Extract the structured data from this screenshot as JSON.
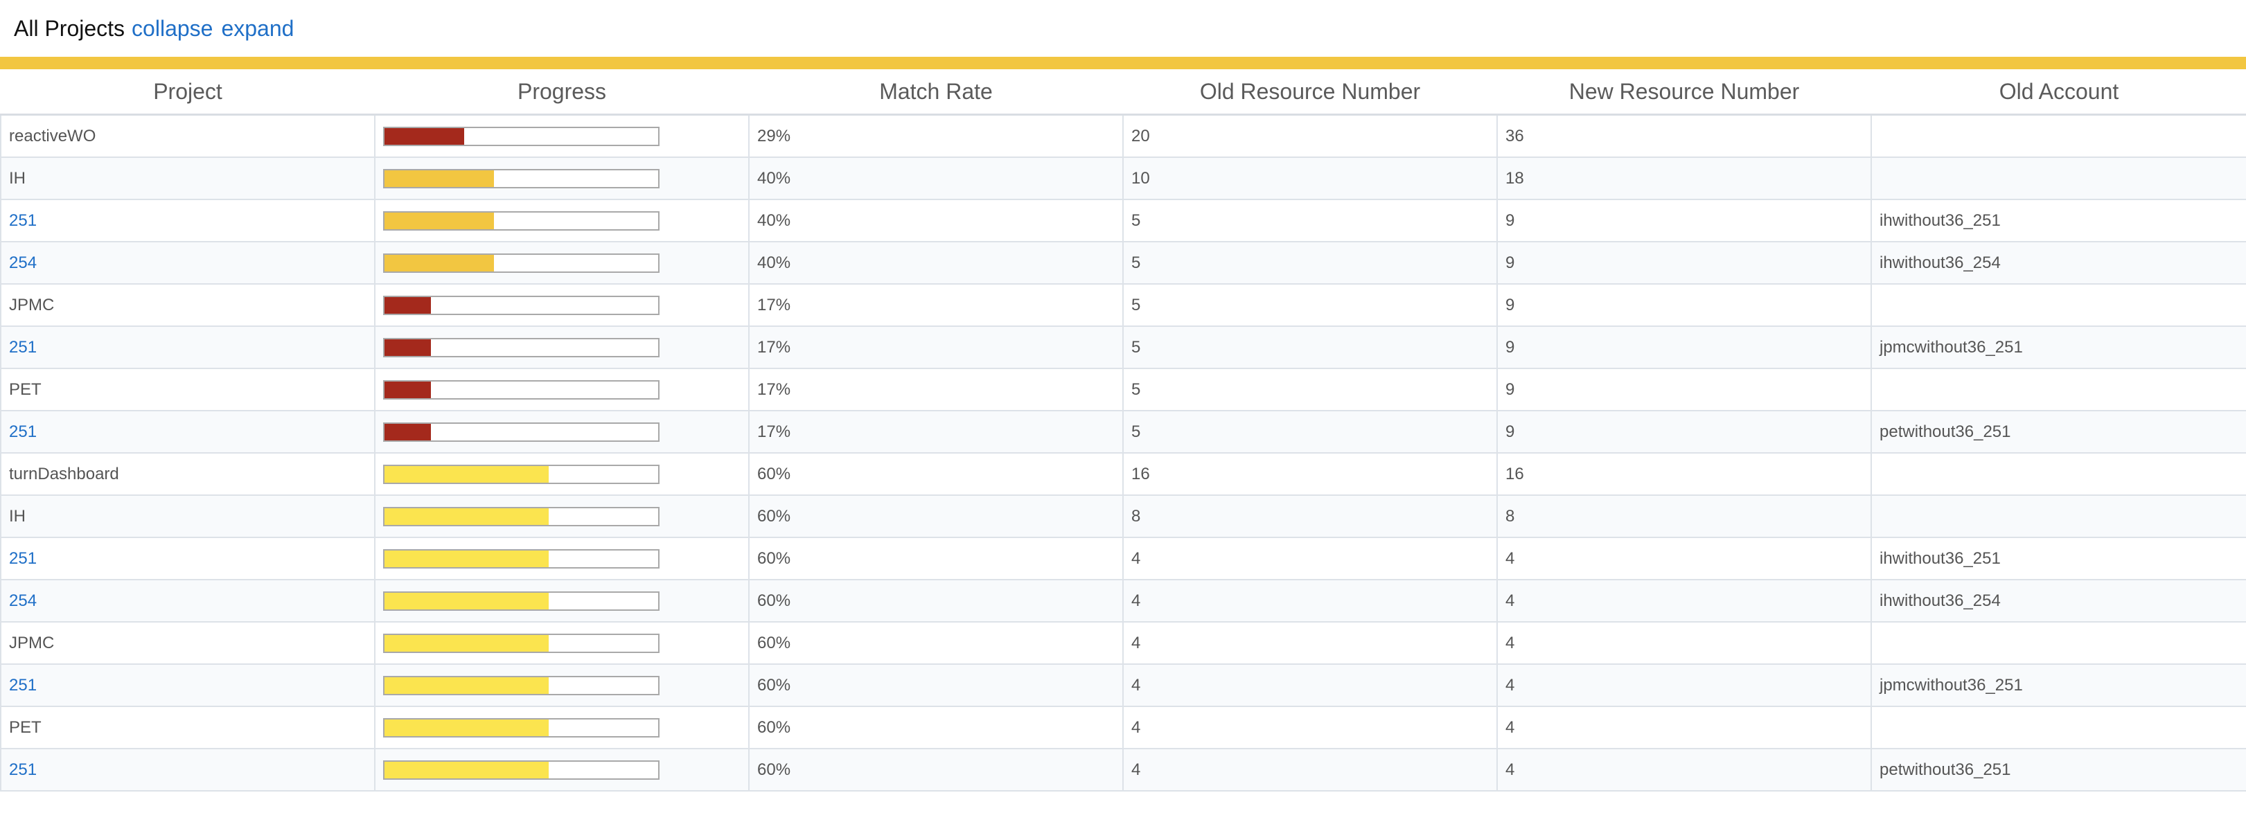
{
  "header": {
    "title": "All Projects",
    "collapse_label": "collapse",
    "expand_label": "expand"
  },
  "colors": {
    "accent_bar": "#f2c641",
    "link": "#1f6fc7",
    "progress_low": "#a4291c",
    "progress_mid": "#f2c641",
    "progress_high": "#fbe44f"
  },
  "table": {
    "columns": [
      "Project",
      "Progress",
      "Match Rate",
      "Old Resource Number",
      "New Resource Number",
      "Old Account"
    ],
    "rows": [
      {
        "project": "reactiveWO",
        "link": false,
        "progress": 0.29,
        "color": "#a4291c",
        "match_rate": "29%",
        "old_resource": "20",
        "new_resource": "36",
        "old_account": ""
      },
      {
        "project": "IH",
        "link": false,
        "progress": 0.4,
        "color": "#f2c641",
        "match_rate": "40%",
        "old_resource": "10",
        "new_resource": "18",
        "old_account": ""
      },
      {
        "project": "251",
        "link": true,
        "progress": 0.4,
        "color": "#f2c641",
        "match_rate": "40%",
        "old_resource": "5",
        "new_resource": "9",
        "old_account": "ihwithout36_251"
      },
      {
        "project": "254",
        "link": true,
        "progress": 0.4,
        "color": "#f2c641",
        "match_rate": "40%",
        "old_resource": "5",
        "new_resource": "9",
        "old_account": "ihwithout36_254"
      },
      {
        "project": "JPMC",
        "link": false,
        "progress": 0.17,
        "color": "#a4291c",
        "match_rate": "17%",
        "old_resource": "5",
        "new_resource": "9",
        "old_account": ""
      },
      {
        "project": "251",
        "link": true,
        "progress": 0.17,
        "color": "#a4291c",
        "match_rate": "17%",
        "old_resource": "5",
        "new_resource": "9",
        "old_account": "jpmcwithout36_251"
      },
      {
        "project": "PET",
        "link": false,
        "progress": 0.17,
        "color": "#a4291c",
        "match_rate": "17%",
        "old_resource": "5",
        "new_resource": "9",
        "old_account": ""
      },
      {
        "project": "251",
        "link": true,
        "progress": 0.17,
        "color": "#a4291c",
        "match_rate": "17%",
        "old_resource": "5",
        "new_resource": "9",
        "old_account": "petwithout36_251"
      },
      {
        "project": "turnDashboard",
        "link": false,
        "progress": 0.6,
        "color": "#fbe44f",
        "match_rate": "60%",
        "old_resource": "16",
        "new_resource": "16",
        "old_account": ""
      },
      {
        "project": "IH",
        "link": false,
        "progress": 0.6,
        "color": "#fbe44f",
        "match_rate": "60%",
        "old_resource": "8",
        "new_resource": "8",
        "old_account": ""
      },
      {
        "project": "251",
        "link": true,
        "progress": 0.6,
        "color": "#fbe44f",
        "match_rate": "60%",
        "old_resource": "4",
        "new_resource": "4",
        "old_account": "ihwithout36_251"
      },
      {
        "project": "254",
        "link": true,
        "progress": 0.6,
        "color": "#fbe44f",
        "match_rate": "60%",
        "old_resource": "4",
        "new_resource": "4",
        "old_account": "ihwithout36_254"
      },
      {
        "project": "JPMC",
        "link": false,
        "progress": 0.6,
        "color": "#fbe44f",
        "match_rate": "60%",
        "old_resource": "4",
        "new_resource": "4",
        "old_account": ""
      },
      {
        "project": "251",
        "link": true,
        "progress": 0.6,
        "color": "#fbe44f",
        "match_rate": "60%",
        "old_resource": "4",
        "new_resource": "4",
        "old_account": "jpmcwithout36_251"
      },
      {
        "project": "PET",
        "link": false,
        "progress": 0.6,
        "color": "#fbe44f",
        "match_rate": "60%",
        "old_resource": "4",
        "new_resource": "4",
        "old_account": ""
      },
      {
        "project": "251",
        "link": true,
        "progress": 0.6,
        "color": "#fbe44f",
        "match_rate": "60%",
        "old_resource": "4",
        "new_resource": "4",
        "old_account": "petwithout36_251"
      }
    ]
  }
}
